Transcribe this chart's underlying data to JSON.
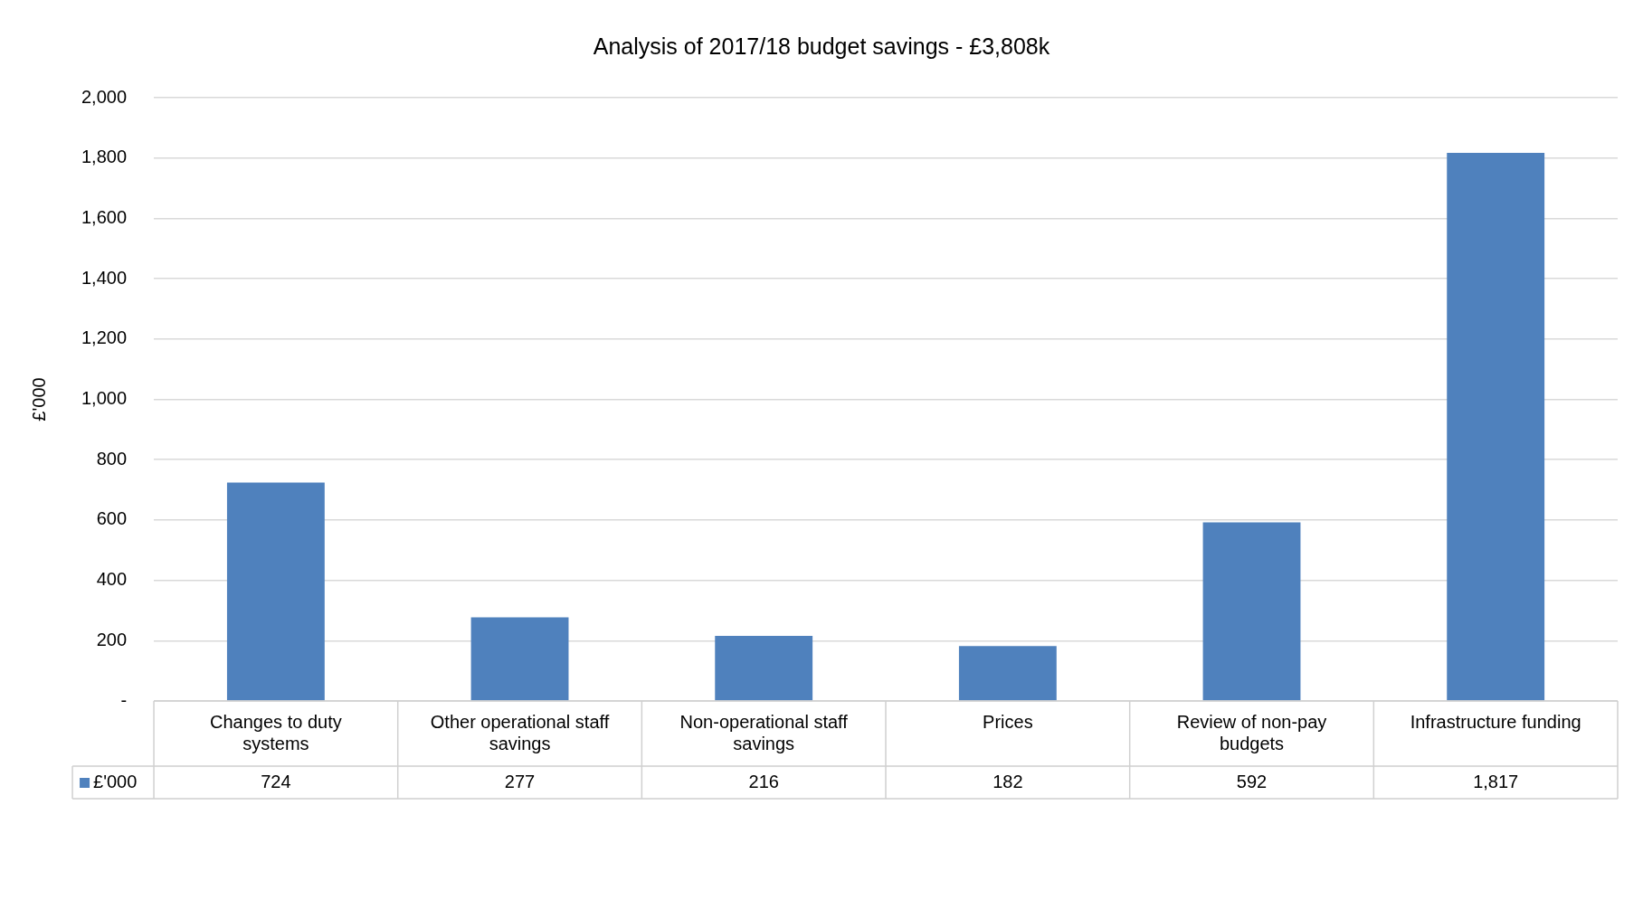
{
  "chart_data": {
    "type": "bar",
    "title": "Analysis of 2017/18 budget savings - £3,808k",
    "ylabel": "£'000",
    "categories": [
      "Changes to duty systems",
      "Other operational staff savings",
      "Non-operational staff savings",
      "Prices",
      "Review of non-pay budgets",
      "Infrastructure funding"
    ],
    "series": [
      {
        "name": "£'000",
        "color": "#4f81bd",
        "values": [
          724,
          277,
          216,
          182,
          592,
          1817
        ]
      }
    ],
    "ylim": [
      0,
      2000
    ],
    "yticks": [
      {
        "value": 0,
        "label": "-"
      },
      200,
      400,
      600,
      800,
      {
        "value": 1000,
        "label": "1,000"
      },
      {
        "value": 1200,
        "label": "1,200"
      },
      {
        "value": 1400,
        "label": "1,400"
      },
      {
        "value": 1600,
        "label": "1,600"
      },
      {
        "value": 1800,
        "label": "1,800"
      },
      {
        "value": 2000,
        "label": "2,000"
      }
    ],
    "value_labels": [
      "724",
      "277",
      "216",
      "182",
      "592",
      "1,817"
    ],
    "grid": "y",
    "legend": "bottom"
  }
}
